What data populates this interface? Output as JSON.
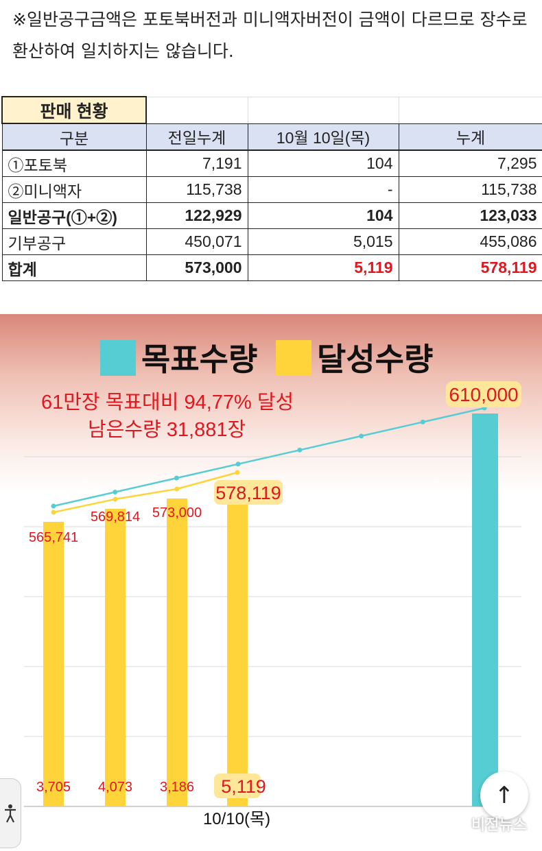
{
  "note": "※일반공구금액은 포토북버전과 미니액자버전이 금액이 다르므로 장수로 환산하여 일치하지는 않습니다.",
  "table": {
    "title": "판매 현황",
    "headers": [
      "구분",
      "전일누계",
      "10월 10일(목)",
      "누계"
    ],
    "rows": [
      {
        "label": "①포토북",
        "prev": "7,191",
        "today": "104",
        "total": "7,295"
      },
      {
        "label": "②미니액자",
        "prev": "115,738",
        "today": "-",
        "total": "115,738"
      },
      {
        "label": "일반공구(①+②)",
        "prev": "122,929",
        "today": "104",
        "total": "123,033"
      },
      {
        "label": "기부공구",
        "prev": "450,071",
        "today": "5,015",
        "total": "455,086"
      },
      {
        "label": "합계",
        "prev": "573,000",
        "today": "5,119",
        "total": "578,119"
      }
    ]
  },
  "colors": {
    "target": "#55cdd3",
    "achieved": "#ffd43b",
    "accent_red": "#e0171f"
  },
  "chart_data": {
    "type": "bar",
    "title": "",
    "legend": [
      "목표수량",
      "달성수량"
    ],
    "annotation_lines": [
      "61만장 목표대비  94,77% 달성",
      "남은수량 31,881장"
    ],
    "target_bar": {
      "label": "610,000",
      "value": 610000
    },
    "achieved_line": {
      "labels": [
        "565,741",
        "569,814",
        "573,000",
        "578,119"
      ],
      "values": [
        565741,
        569814,
        573000,
        578119
      ]
    },
    "daily_bars": {
      "labels": [
        "3,705",
        "4,073",
        "3,186",
        "5,119"
      ],
      "values": [
        3705,
        4073,
        3186,
        5119
      ]
    },
    "target_line_points": 8,
    "xlabel": "10/10(목)"
  },
  "ui": {
    "scroll_top_icon": "↑",
    "accessibility_icon": "accessibility-icon",
    "watermark": "비전뉴스"
  }
}
